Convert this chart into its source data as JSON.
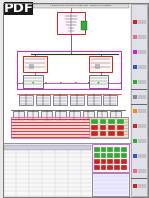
{
  "bg_color": "#e8e8e8",
  "page_bg": "#ffffff",
  "pdf_label_bg": "#1a1a1a",
  "pdf_label_text": "PDF",
  "pdf_label_color": "#ffffff",
  "border_color": "#666666",
  "red_color": "#cc2222",
  "pink_color": "#dd44aa",
  "magenta_color": "#cc22cc",
  "green_color": "#33aa33",
  "dark_green": "#116611",
  "blue_color": "#3355cc",
  "gray_color": "#888888",
  "light_gray": "#bbbbbb",
  "dark_gray": "#333333",
  "right_panel_bg": "#e0e0e8",
  "right_panel_border": "#888888",
  "table_bg_red": "#cc2222",
  "table_bg_green": "#33aa33",
  "salmon": "#ee8888",
  "figsize": [
    1.49,
    1.98
  ],
  "dpi": 100
}
